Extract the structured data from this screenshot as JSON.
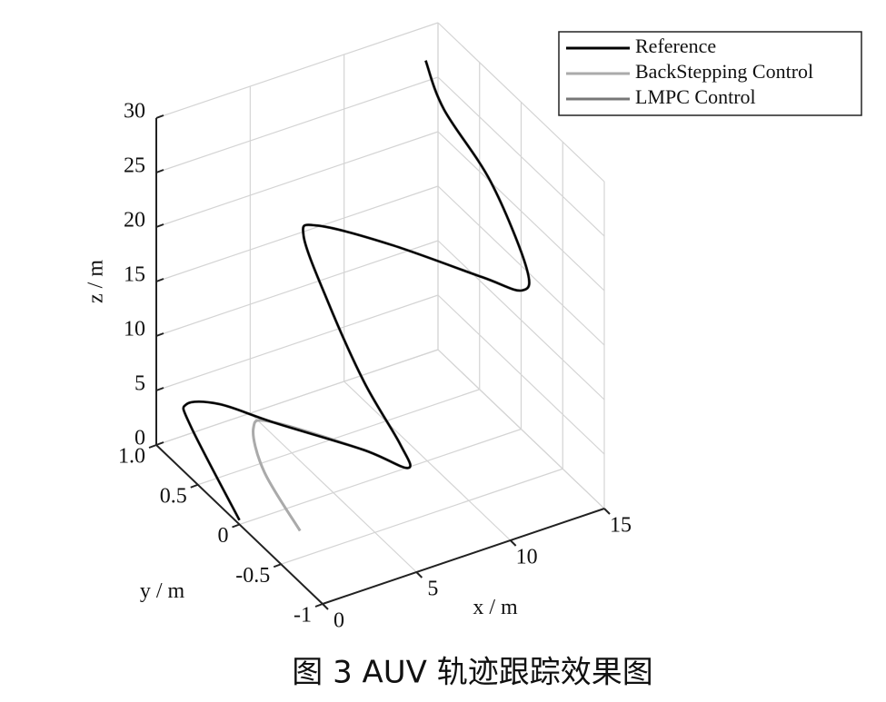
{
  "chart_data": {
    "type": "line3d",
    "caption": "图 3  AUV 轨迹跟踪效果图",
    "xlabel": "x / m",
    "ylabel": "y / m",
    "zlabel": "z / m",
    "xlim": [
      0,
      15
    ],
    "ylim": [
      -1,
      1
    ],
    "zlim": [
      0,
      30
    ],
    "xticks": [
      0,
      5,
      10,
      15
    ],
    "yticks": [
      -1,
      -0.5,
      0,
      0.5,
      {
        "value": 1,
        "label": "1.0"
      }
    ],
    "zticks": [
      0,
      5,
      10,
      15,
      20,
      25,
      30
    ],
    "grid": true,
    "legend": "upper right",
    "series": [
      {
        "name": "Reference",
        "color": "#000000",
        "x": [
          0,
          1.4,
          1.6,
          2.9,
          4.0,
          6.6,
          7.2,
          5.9,
          5.3,
          6.0,
          7.4,
          7.7,
          9.4,
          10.7,
          11.5,
          11.3,
          12.5,
          13.1,
          13.9
        ],
        "y": [
          0,
          0.9,
          1,
          0.9,
          0.5,
          0,
          -0.4,
          -0.6,
          -0.3,
          0.3,
          0.9,
          0.8,
          0.3,
          -0.5,
          -0.8,
          -0.9,
          -0.2,
          0.5,
          0.9
        ],
        "z": [
          0.4,
          1.6,
          2.8,
          2.8,
          3.4,
          3.0,
          3.9,
          8.3,
          12.2,
          14.9,
          15.6,
          17.1,
          18.0,
          20.1,
          20.6,
          23.5,
          25.6,
          26.8,
          27.9
        ]
      },
      {
        "name": "BackStepping Control",
        "color": "#aaaaaa",
        "x": [
          1.9,
          2.2,
          3.4,
          4.0,
          6.6,
          7.2,
          5.9,
          5.3,
          6.0,
          7.4,
          7.7,
          9.4,
          10.7,
          11.5,
          11.3,
          12.5,
          13.1,
          13.9
        ],
        "y": [
          -0.3,
          0.2,
          0.6,
          0.5,
          0,
          -0.4,
          -0.6,
          -0.3,
          0.3,
          0.9,
          0.8,
          0.3,
          -0.5,
          -0.8,
          -0.9,
          -0.2,
          0.5,
          0.9
        ],
        "z": [
          0.5,
          2.1,
          2.5,
          3.4,
          3.0,
          3.9,
          8.3,
          12.2,
          14.9,
          15.6,
          17.1,
          18.0,
          20.1,
          20.6,
          23.5,
          25.6,
          26.8,
          27.9
        ]
      },
      {
        "name": "LMPC Control",
        "color": "#777777",
        "x": [
          0,
          1.4,
          1.6,
          2.9,
          4.0,
          6.6,
          7.2,
          5.9,
          5.3,
          6.0,
          7.4,
          7.7,
          9.4,
          10.7,
          11.5,
          11.3,
          12.5,
          13.1,
          13.9
        ],
        "y": [
          0,
          0.9,
          1,
          0.9,
          0.5,
          0,
          -0.4,
          -0.6,
          -0.3,
          0.3,
          0.9,
          0.8,
          0.3,
          -0.5,
          -0.8,
          -0.9,
          -0.2,
          0.5,
          0.9
        ],
        "z": [
          0.4,
          1.6,
          2.8,
          2.8,
          3.4,
          3.0,
          3.9,
          8.3,
          12.2,
          14.9,
          15.6,
          17.1,
          18.0,
          20.1,
          20.6,
          23.5,
          25.6,
          26.8,
          27.9
        ]
      }
    ]
  }
}
